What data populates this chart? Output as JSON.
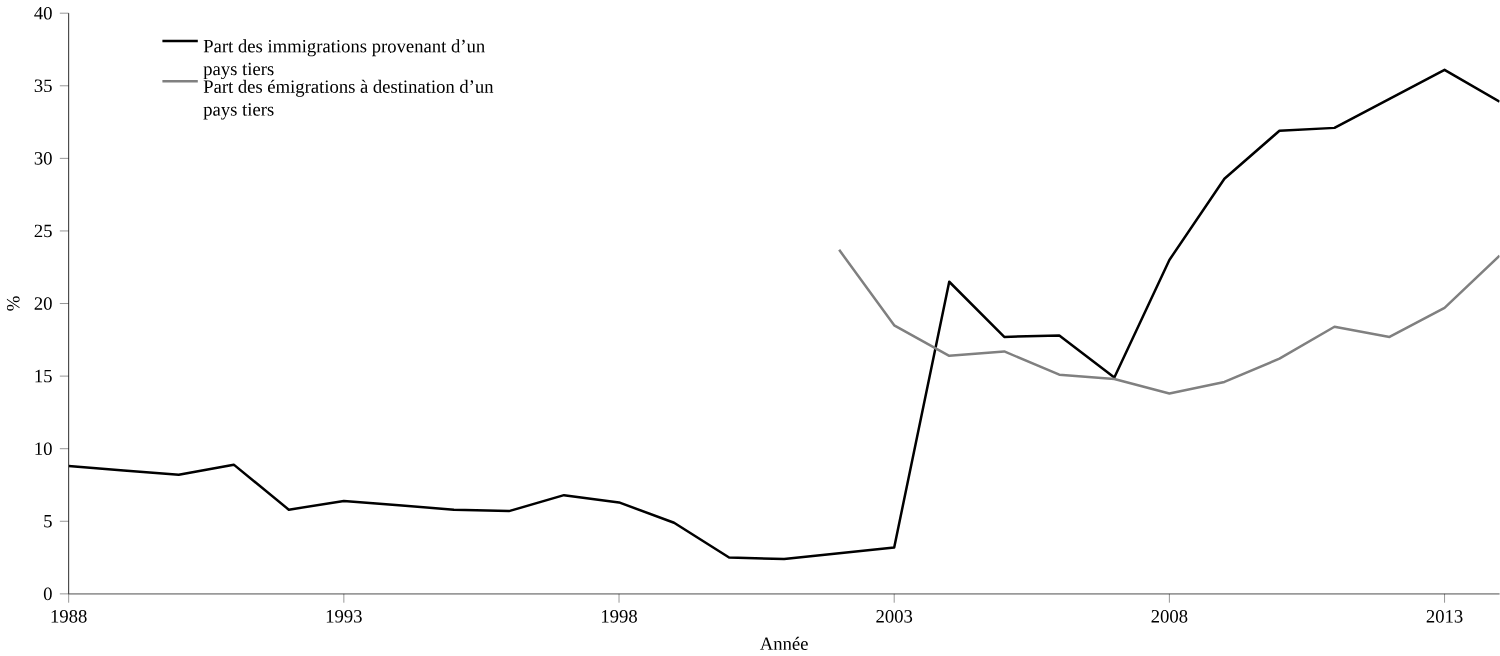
{
  "chart_data": {
    "type": "line",
    "xlabel": "Année",
    "ylabel": "%",
    "xlim": [
      1988,
      2014
    ],
    "ylim": [
      0,
      40
    ],
    "xticks": [
      1988,
      1993,
      1998,
      2003,
      2008,
      2013
    ],
    "yticks": [
      0,
      5,
      10,
      15,
      20,
      25,
      30,
      35,
      40
    ],
    "legend": "top left",
    "grid": false,
    "marker": "none",
    "line_style": "solid",
    "series": [
      {
        "name": "Part des immigrations provenant d’un pays tiers",
        "color": "#000000",
        "x": [
          1988,
          1989,
          1990,
          1991,
          1992,
          1993,
          1994,
          1995,
          1996,
          1997,
          1998,
          1999,
          2000,
          2001,
          2002,
          2003,
          2004,
          2005,
          2006,
          2007,
          2008,
          2009,
          2010,
          2011,
          2012,
          2013,
          2014
        ],
        "values": [
          8.8,
          8.5,
          8.2,
          8.9,
          5.8,
          6.4,
          6.1,
          5.8,
          5.7,
          6.8,
          6.3,
          4.9,
          2.5,
          2.4,
          2.8,
          3.2,
          21.5,
          17.7,
          17.8,
          14.9,
          23,
          28.6,
          31.9,
          32.1,
          34.1,
          36.1,
          33.9
        ]
      },
      {
        "name": "Part des émigrations à destination d’un pays tiers",
        "color": "#808080",
        "x": [
          2002,
          2003,
          2004,
          2005,
          2006,
          2007,
          2008,
          2009,
          2010,
          2011,
          2012,
          2013,
          2014
        ],
        "values": [
          23.7,
          18.5,
          16.4,
          16.7,
          15.1,
          14.8,
          13.8,
          14.6,
          16.2,
          18.4,
          17.7,
          19.7,
          23.3
        ]
      }
    ]
  }
}
